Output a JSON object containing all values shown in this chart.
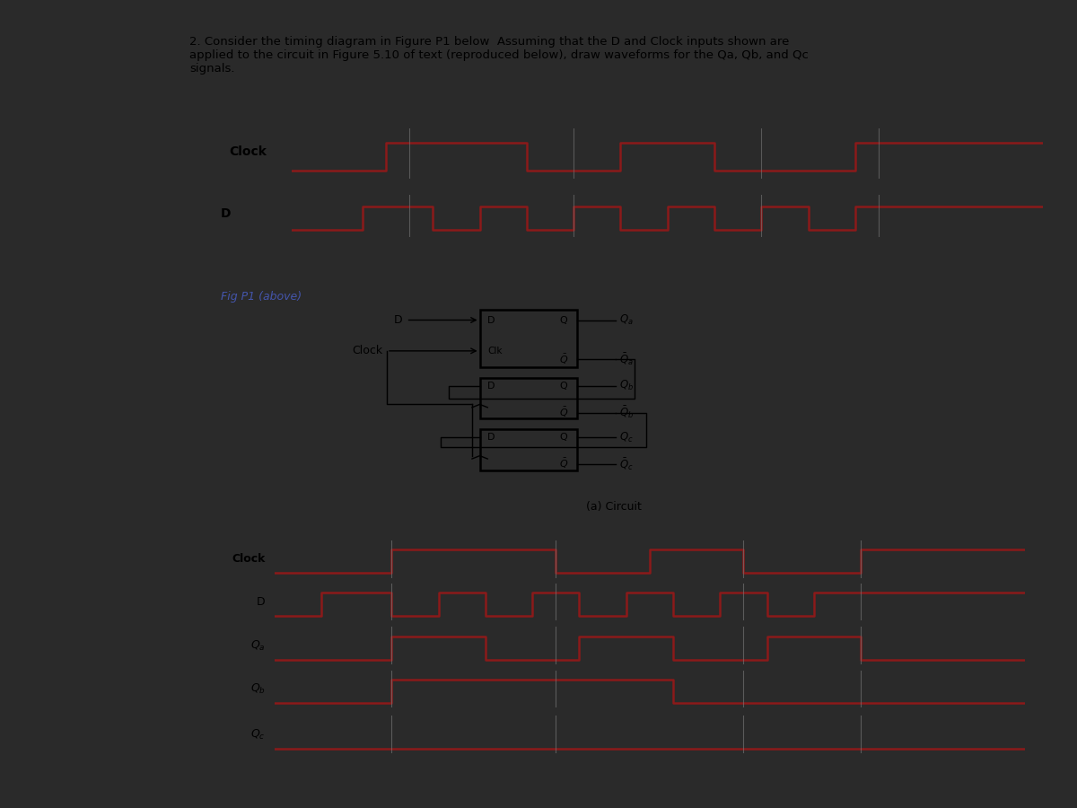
{
  "title_text": "2. Consider the timing diagram in Figure P1 below  Assuming that the D and Clock inputs shown are\napplied to the circuit in Figure 5.10 of text (reproduced below), draw waveforms for the Qa, Qb, and Qc\nsignals.",
  "fig_p1_label": "Fig P1 (above)",
  "circuit_label": "(a) Circuit",
  "bg_color": "#2a2a2a",
  "panel_color": "#e0ddd8",
  "waveform_color": "#8b1a1a",
  "line_color": "#777777",
  "top_clock_times": [
    0,
    2,
    2,
    5,
    5,
    7,
    7,
    9,
    9,
    12,
    12,
    16
  ],
  "top_clock_vals": [
    0,
    0,
    1,
    1,
    0,
    0,
    1,
    1,
    0,
    0,
    1,
    1
  ],
  "top_D_times": [
    0,
    1.5,
    1.5,
    3,
    3,
    4,
    4,
    5,
    5,
    6,
    6,
    7,
    7,
    8,
    8,
    9,
    9,
    10,
    10,
    11,
    11,
    12,
    12,
    16
  ],
  "top_D_vals": [
    0,
    0,
    1,
    1,
    0,
    0,
    1,
    1,
    0,
    0,
    1,
    1,
    0,
    0,
    1,
    1,
    0,
    0,
    1,
    1,
    0,
    0,
    1,
    1
  ],
  "bot_clock_times": [
    0,
    2.5,
    2.5,
    6,
    6,
    8,
    8,
    10,
    10,
    12.5,
    12.5,
    16
  ],
  "bot_clock_vals": [
    0,
    0,
    1,
    1,
    0,
    0,
    1,
    1,
    0,
    0,
    1,
    1
  ],
  "bot_D_times": [
    0,
    1,
    1,
    2.5,
    2.5,
    3.5,
    3.5,
    4.5,
    4.5,
    5.5,
    5.5,
    6.5,
    6.5,
    7.5,
    7.5,
    8.5,
    8.5,
    9.5,
    9.5,
    10.5,
    10.5,
    11.5,
    11.5,
    16
  ],
  "bot_D_vals": [
    0,
    0,
    1,
    1,
    0,
    0,
    1,
    1,
    0,
    0,
    1,
    1,
    0,
    0,
    1,
    1,
    0,
    0,
    1,
    1,
    0,
    0,
    1,
    1
  ],
  "Qa_times": [
    0,
    2.5,
    2.5,
    4.5,
    4.5,
    6.5,
    6.5,
    8.5,
    8.5,
    10.5,
    10.5,
    12.5,
    12.5,
    16
  ],
  "Qa_vals": [
    0,
    0,
    1,
    1,
    0,
    0,
    1,
    1,
    0,
    0,
    1,
    1,
    0,
    0
  ],
  "Qb_times": [
    0,
    2.5,
    2.5,
    8.5,
    8.5,
    16
  ],
  "Qb_vals": [
    0,
    0,
    1,
    1,
    0,
    0
  ],
  "Qc_times": [
    0,
    16
  ],
  "Qc_vals": [
    0,
    0
  ],
  "vline_times": [
    2.5,
    6.0,
    10.0,
    12.5
  ],
  "font_size_title": 9.5,
  "font_size_label": 9
}
